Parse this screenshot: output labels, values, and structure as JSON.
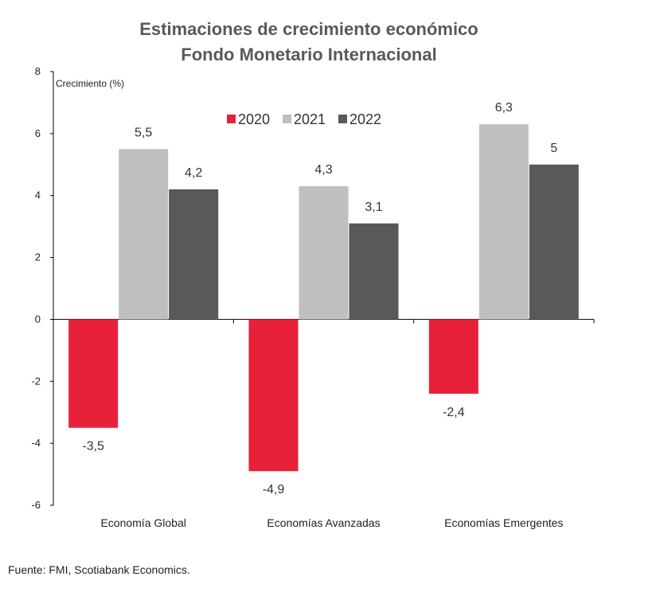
{
  "chart_data": {
    "type": "bar",
    "title": "Estimaciones de crecimiento económico",
    "subtitle": "Fondo Monetario Internacional",
    "ylabel": "Crecimiento (%)",
    "xlabel": "",
    "ylim": [
      -6,
      8
    ],
    "yticks": [
      8,
      6,
      4,
      2,
      0,
      -2,
      -4,
      -6
    ],
    "categories": [
      "Economía Global",
      "Economías Avanzadas",
      "Economías Emergentes"
    ],
    "series": [
      {
        "name": "2020",
        "color": "#E8203A",
        "values": [
          -3.5,
          -4.9,
          -2.4
        ],
        "labels": [
          "-3,5",
          "-4,9",
          "-2,4"
        ]
      },
      {
        "name": "2021",
        "color": "#BFBFBF",
        "values": [
          5.5,
          4.3,
          6.3
        ],
        "labels": [
          "5,5",
          "4,3",
          "6,3"
        ]
      },
      {
        "name": "2022",
        "color": "#595959",
        "values": [
          4.2,
          3.1,
          5.0
        ],
        "labels": [
          "4,2",
          "3,1",
          "5"
        ]
      }
    ],
    "legend": "top-center"
  },
  "source": "Fuente: FMI, Scotiabank Economics."
}
